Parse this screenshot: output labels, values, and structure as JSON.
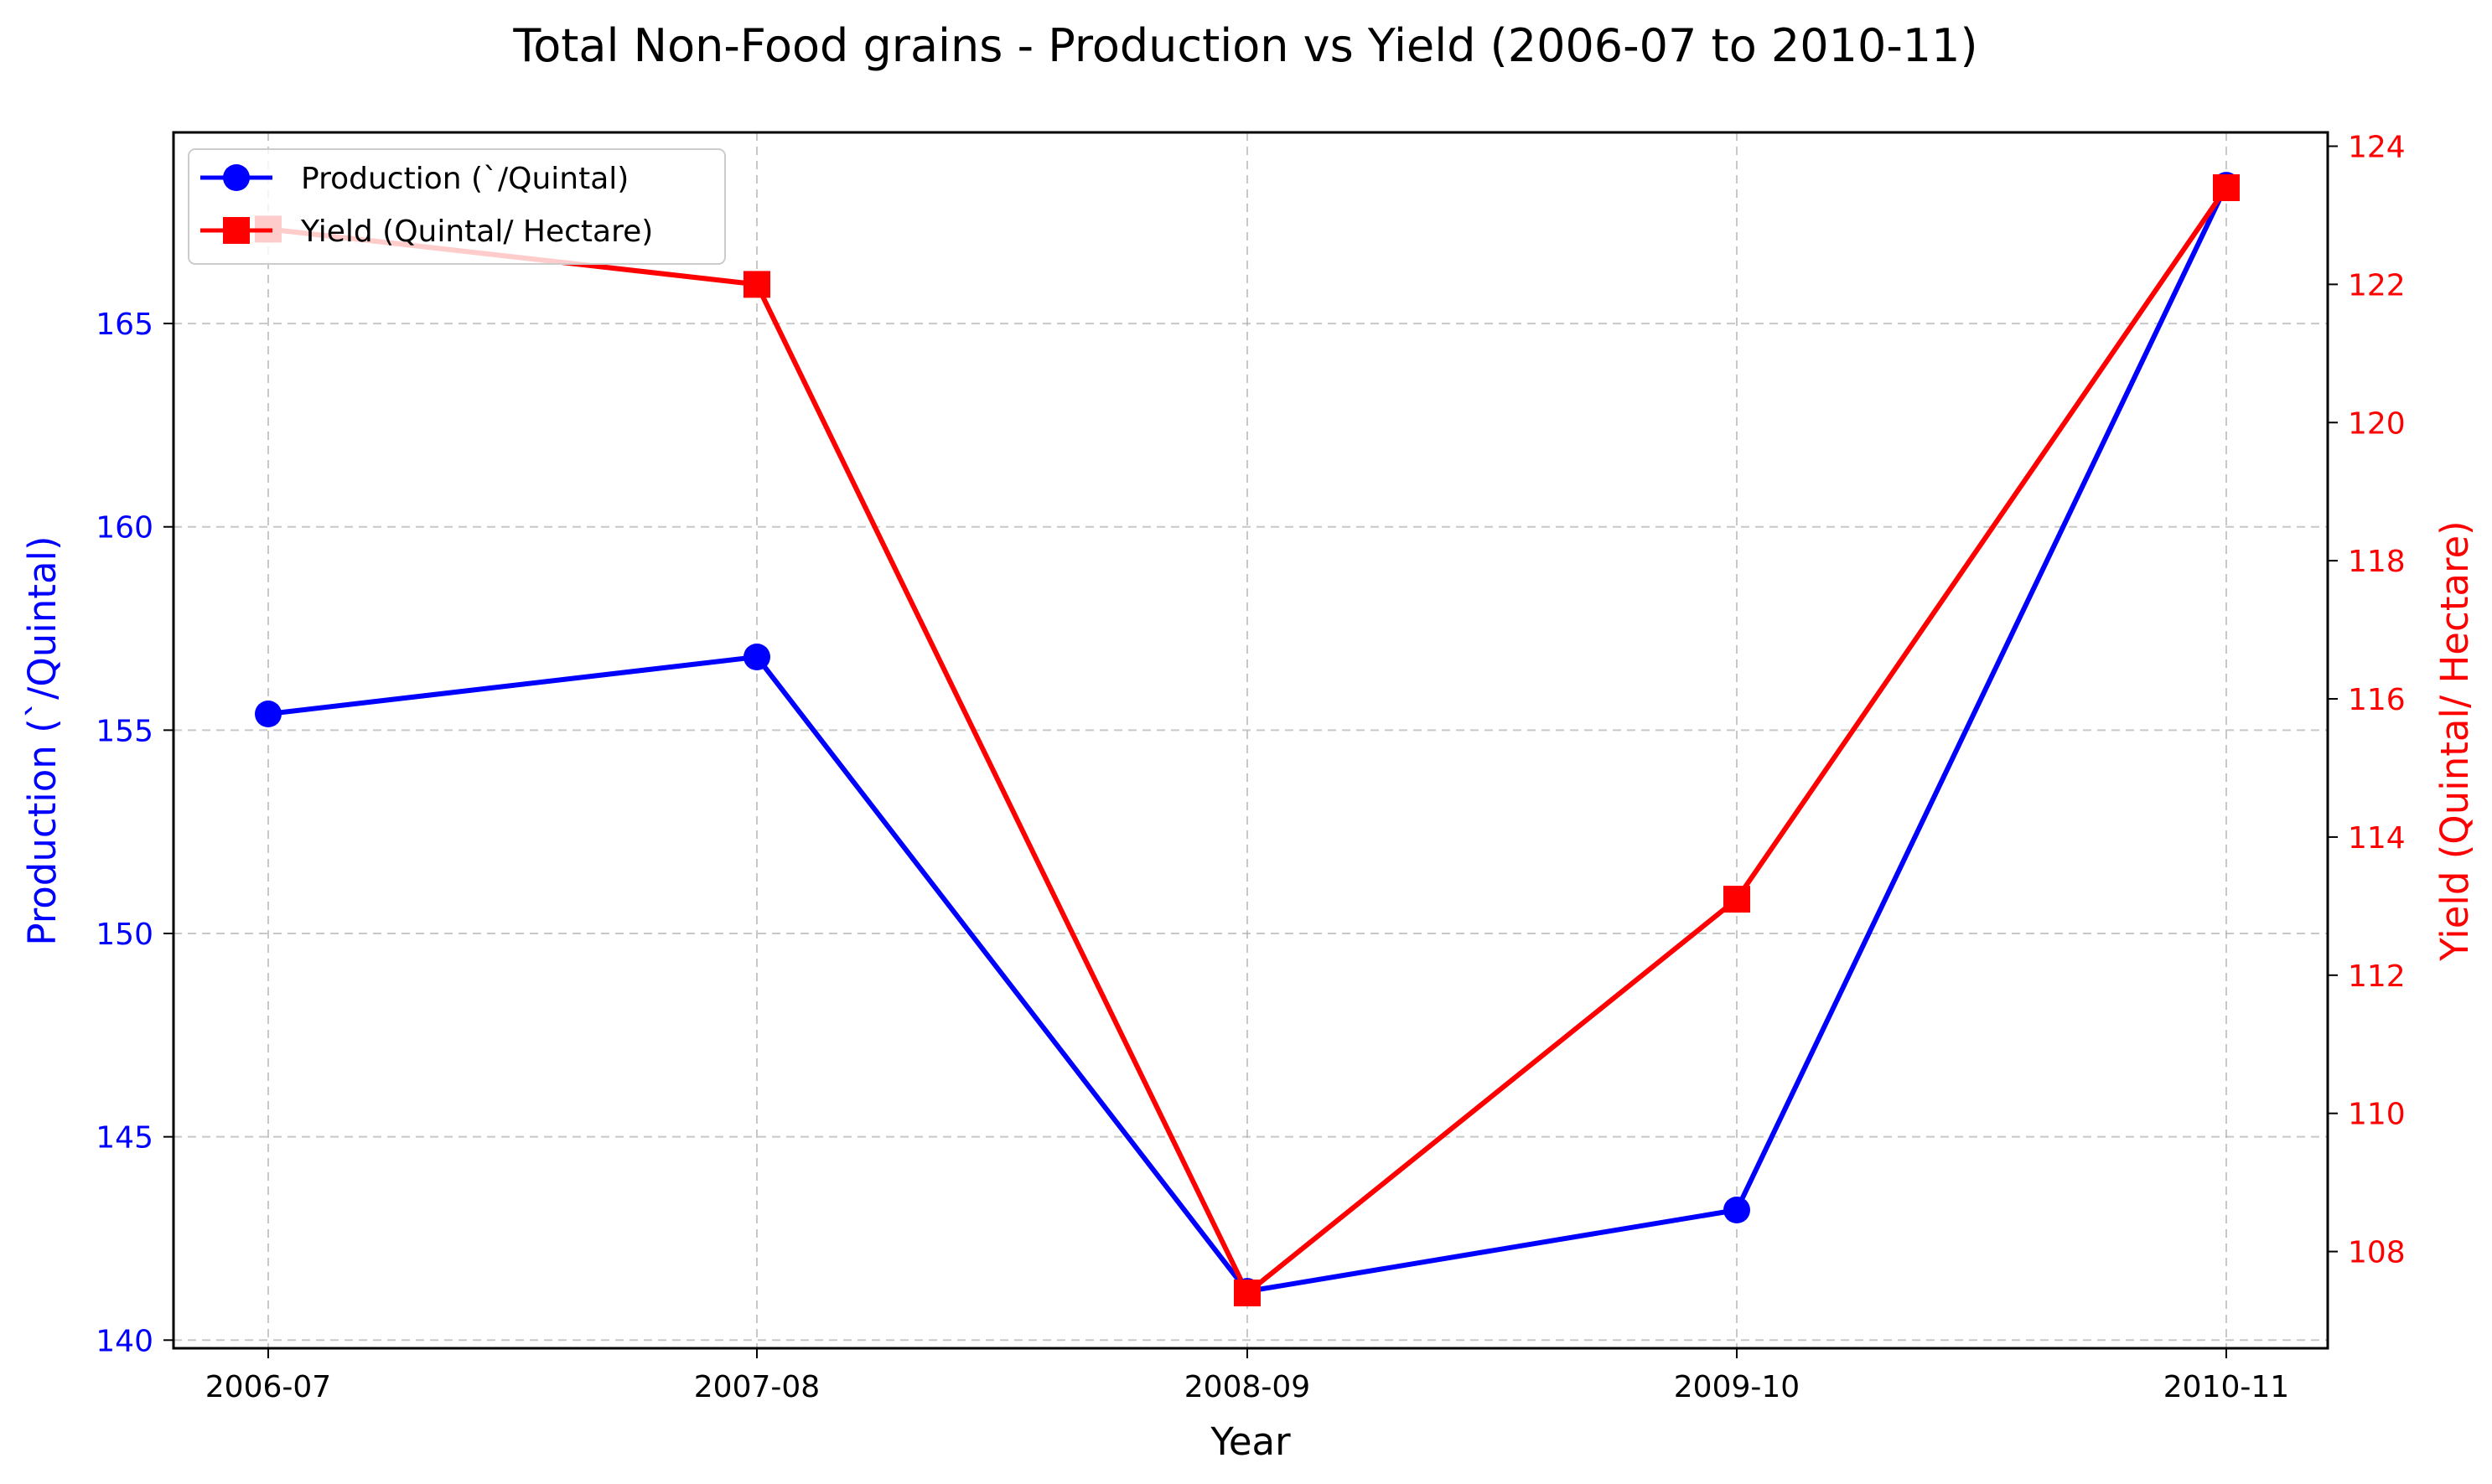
{
  "chart_data": {
    "type": "line",
    "title": "Total Non-Food grains  - Production vs Yield (2006-07 to 2010-11)",
    "xlabel": "Year",
    "ylabel_left": "Production (`/Quintal)",
    "ylabel_right": "Yield (Quintal/ Hectare)",
    "categories": [
      "2006-07",
      "2007-08",
      "2008-09",
      "2009-10",
      "2010-11"
    ],
    "ylim_left": [
      139.8,
      169.7
    ],
    "ylim_right": [
      106.6,
      124.2
    ],
    "yticks_left": [
      "140",
      "145",
      "150",
      "155",
      "160",
      "165"
    ],
    "yticks_right": [
      "108",
      "110",
      "112",
      "114",
      "116",
      "118",
      "120",
      "122",
      "124"
    ],
    "grid": true,
    "legend_position": "upper-left",
    "series": [
      {
        "name": "Production (`/Quintal)",
        "axis": "left",
        "marker": "circle",
        "color": "#0000ff",
        "values": [
          155.4,
          156.8,
          141.2,
          143.2,
          168.4
        ]
      },
      {
        "name": "Yield (Quintal/ Hectare)",
        "axis": "right",
        "marker": "square",
        "color": "#ff0000",
        "values": [
          122.8,
          122.0,
          107.4,
          113.1,
          123.4
        ]
      }
    ]
  }
}
